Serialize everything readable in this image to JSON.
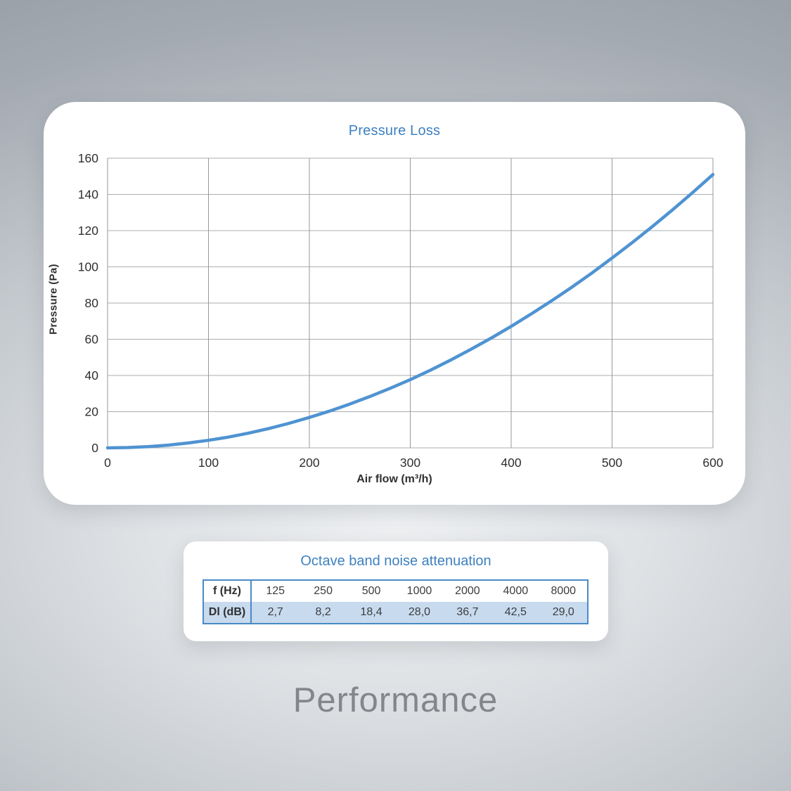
{
  "pressure_card": {
    "title": "Pressure Loss"
  },
  "noise_card": {
    "title": "Octave band noise attenuation",
    "table": {
      "row1_label": "f (Hz)",
      "row2_label": "Dl (dB)",
      "frequencies": [
        "125",
        "250",
        "500",
        "1000",
        "2000",
        "4000",
        "8000"
      ],
      "values": [
        "2,7",
        "8,2",
        "18,4",
        "28,0",
        "36,7",
        "42,5",
        "29,0"
      ]
    }
  },
  "footer": {
    "title": "Performance"
  },
  "chart_data": {
    "type": "line",
    "title": "Pressure Loss",
    "xlabel": "Air flow (m³/h)",
    "ylabel": "Pressure (Pa)",
    "xlim": [
      0,
      600
    ],
    "ylim": [
      0,
      160
    ],
    "x_ticks": [
      0,
      100,
      200,
      300,
      400,
      500,
      600
    ],
    "y_ticks": [
      0,
      20,
      40,
      60,
      80,
      100,
      120,
      140,
      160
    ],
    "grid": true,
    "legend": "none",
    "line_color": "#4f93d2",
    "series": [
      {
        "name": "Pressure loss curve",
        "x": [
          0,
          20,
          40,
          60,
          80,
          100,
          120,
          140,
          160,
          180,
          200,
          220,
          240,
          260,
          280,
          300,
          320,
          340,
          360,
          380,
          400,
          420,
          440,
          460,
          480,
          500,
          520,
          540,
          560,
          580,
          600
        ],
        "y": [
          0,
          0.2,
          0.7,
          1.5,
          2.7,
          4.2,
          6.0,
          8.2,
          10.7,
          13.6,
          16.8,
          20.3,
          24.2,
          28.4,
          32.9,
          37.7,
          42.9,
          48.5,
          54.4,
          60.6,
          67.1,
          74.0,
          81.2,
          88.7,
          96.6,
          104.9,
          113.4,
          122.3,
          131.5,
          141.1,
          151.0
        ]
      }
    ],
    "colors": {
      "title_blue": "#3e81c0",
      "vertical_grid": "#95989b",
      "horizontal_grid": "#aaadaf",
      "tick_text": "#2f2f2f"
    }
  }
}
